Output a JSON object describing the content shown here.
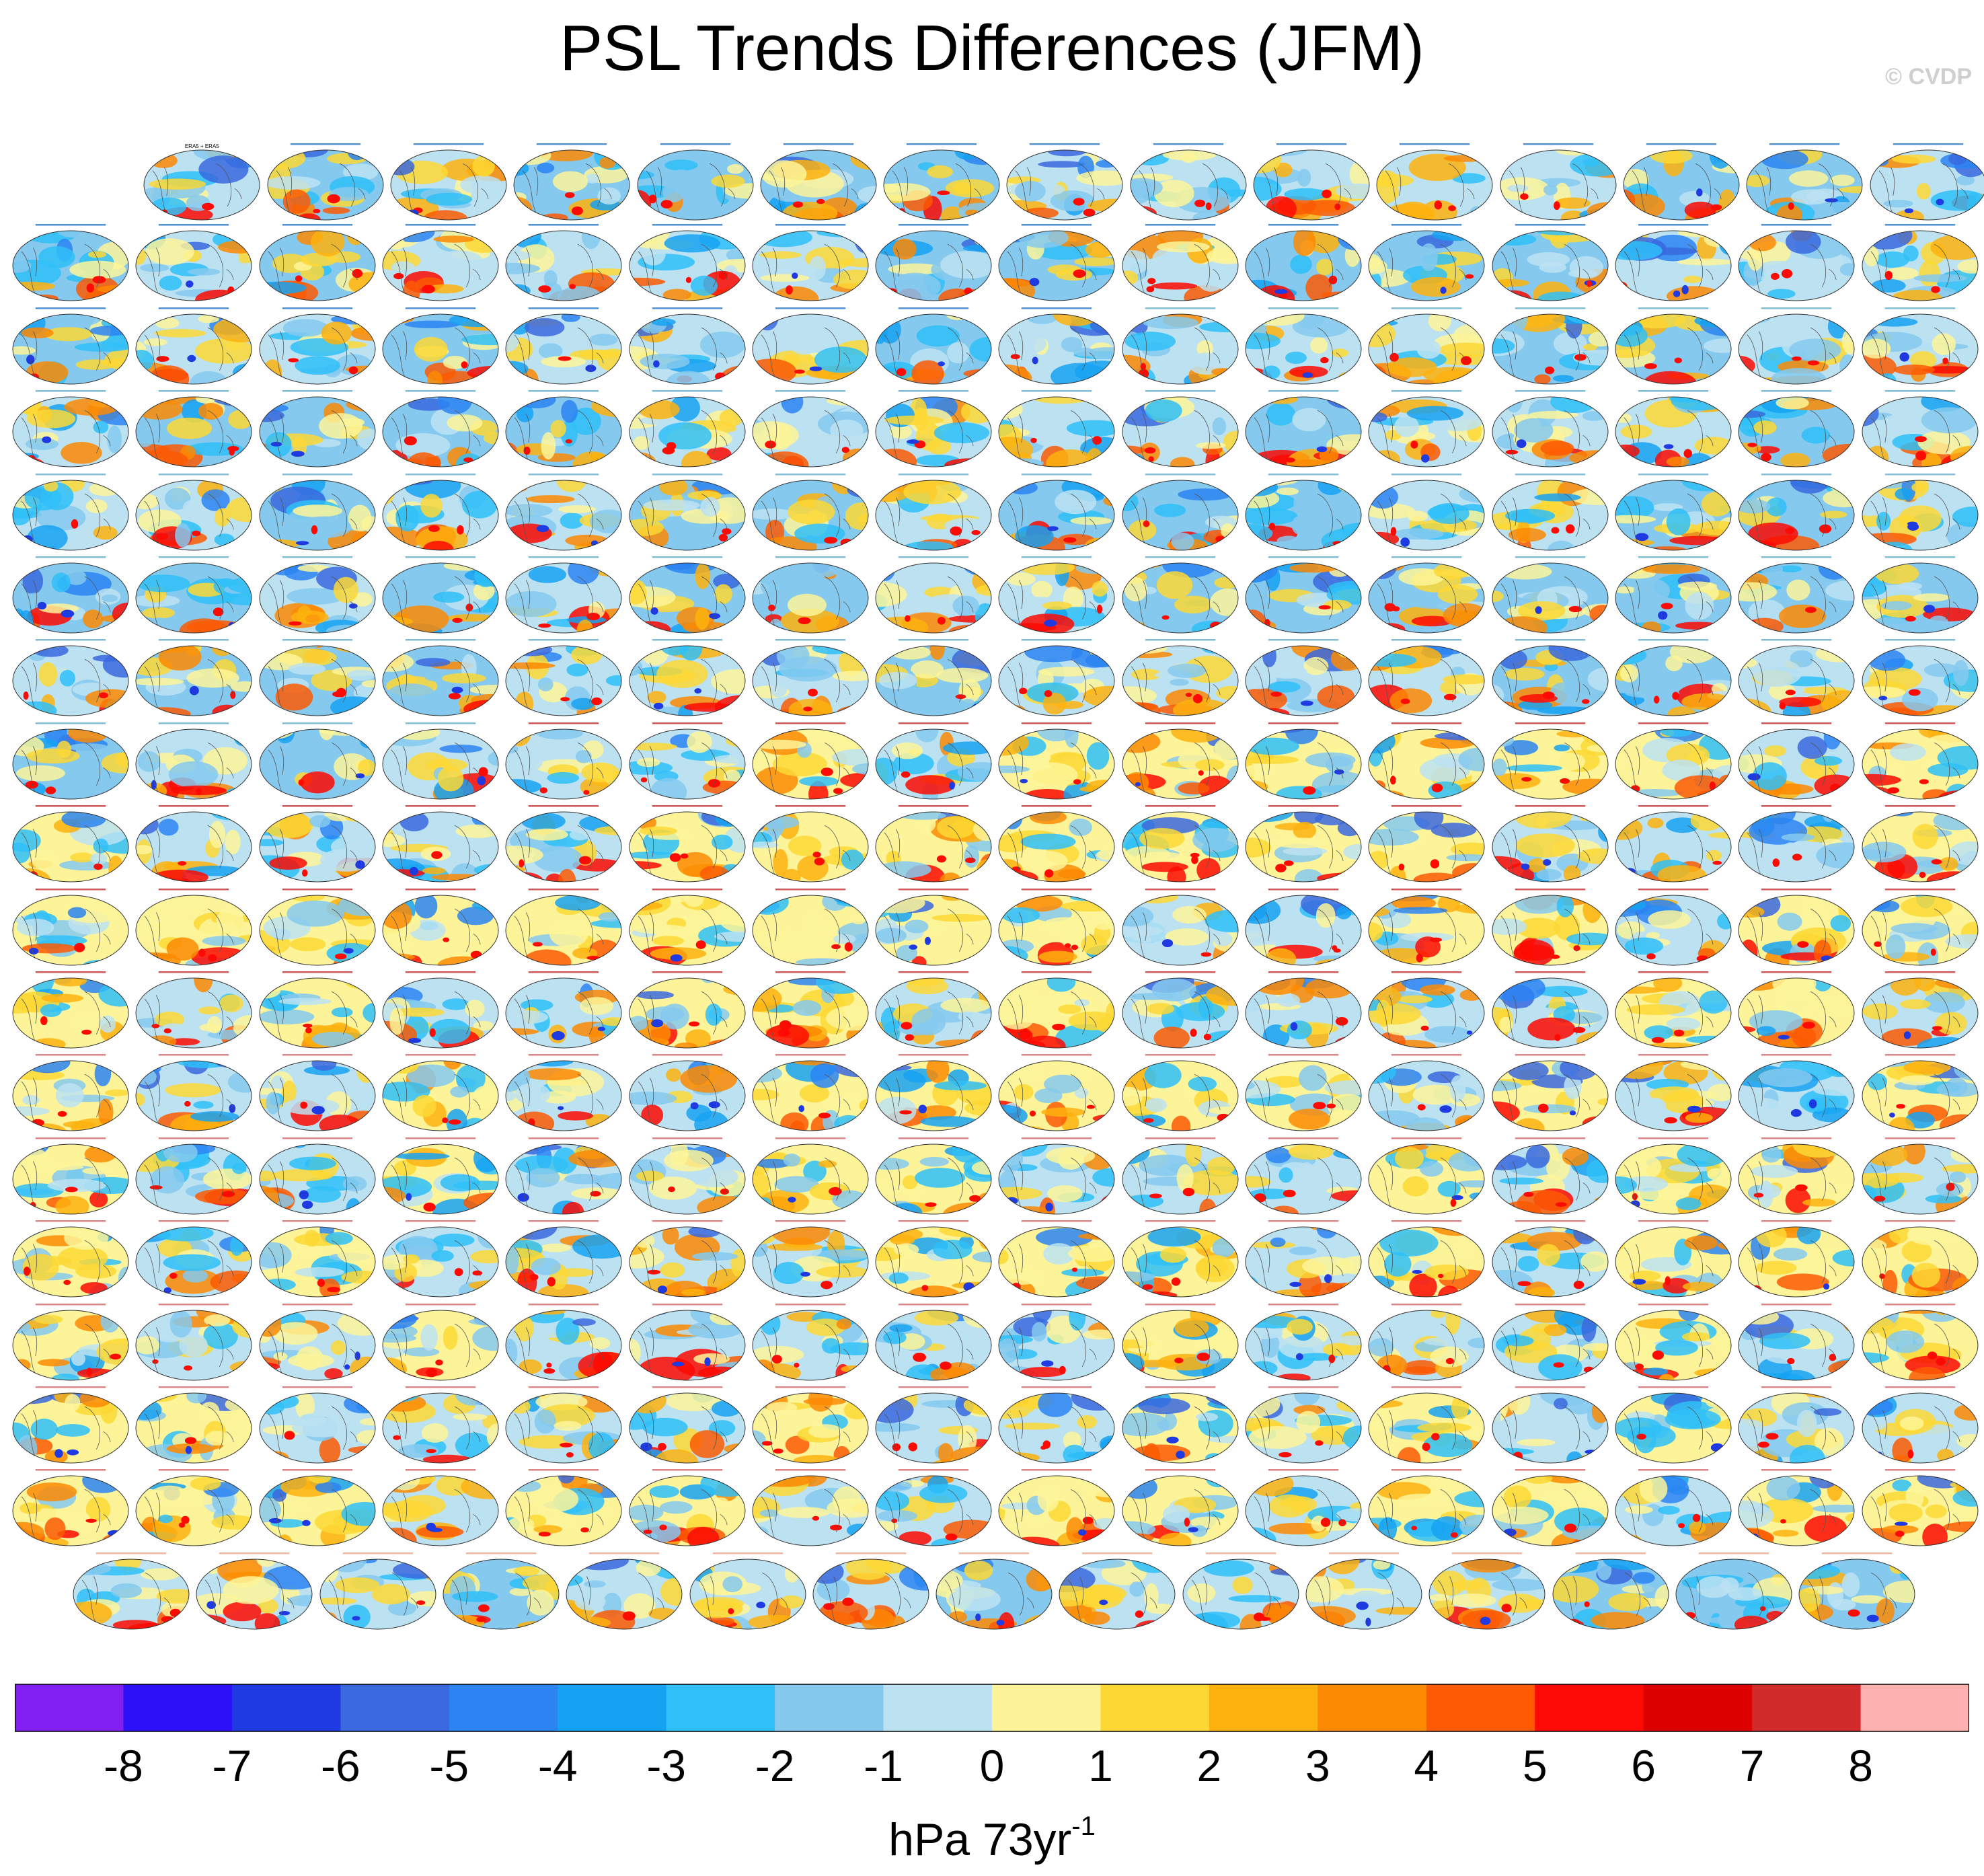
{
  "chart_data": {
    "type": "heatmap",
    "title": "PSL Trends Differences (JFM)",
    "credit": "© CVDP",
    "colorbar": {
      "units_text": "hPa 73yr",
      "units_exponent": "-1",
      "tick_labels": [
        "-8",
        "-7",
        "-6",
        "-5",
        "-4",
        "-3",
        "-2",
        "-1",
        "0",
        "1",
        "2",
        "3",
        "4",
        "5",
        "6",
        "7",
        "8"
      ],
      "colors": [
        "#8120f0",
        "#2b10f8",
        "#1e3ae0",
        "#3a68de",
        "#2b84f2",
        "#16a2f2",
        "#2fc0f8",
        "#85c9ee",
        "#bce2f2",
        "#fdf499",
        "#fdd835",
        "#fdb10e",
        "#fc8a03",
        "#fc5a03",
        "#fc0a03",
        "#dc0000",
        "#d12a2a",
        "#fdb0b0"
      ]
    },
    "panel_grid": {
      "rows": 18,
      "cols": 16,
      "first_row_offset": 1,
      "panel_count": 286,
      "last_row_count": 15
    },
    "panel_label_colors": {
      "obs": "#000000",
      "access": "#1a6fc4",
      "canesm": "#58a8c8",
      "cesm_a": "#c02020",
      "cesm_b": "#d06060",
      "csiro": "#e8a080"
    },
    "panels": [
      {
        "label": "ERA5 + ERA5",
        "group": "obs"
      }
    ]
  }
}
